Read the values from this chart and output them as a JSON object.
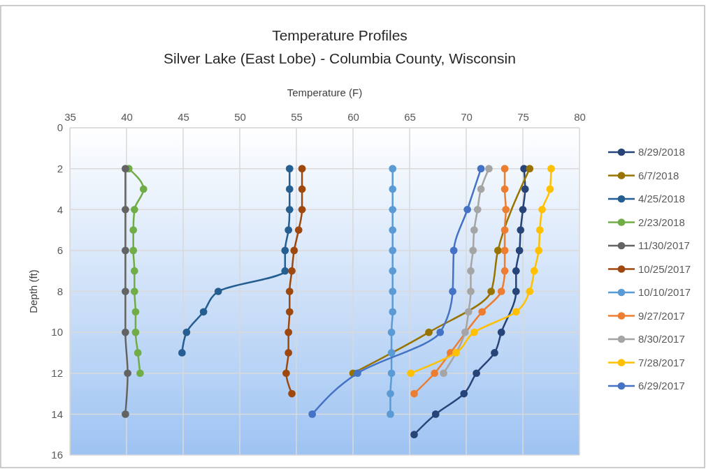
{
  "chart_data": {
    "type": "line",
    "title": "Temperature Profiles",
    "subtitle": "Silver Lake (East Lobe) - Columbia County, Wisconsin",
    "xlabel": "Temperature (F)",
    "ylabel": "Depth (ft)",
    "xlim": [
      35,
      80
    ],
    "xticks": [
      35,
      40,
      45,
      50,
      55,
      60,
      65,
      70,
      75,
      80
    ],
    "ylim": [
      16,
      0
    ],
    "yticks": [
      0,
      2,
      4,
      6,
      8,
      10,
      12,
      14,
      16
    ],
    "grid": true,
    "legend": "right",
    "marker": "circle",
    "line_style": "solid",
    "series": [
      {
        "name": "8/29/2018",
        "color": "#264478",
        "x": [
          75.1,
          75.2,
          75.0,
          74.8,
          74.7,
          74.4,
          74.4,
          74.3,
          73.1,
          72.5,
          70.9,
          69.8,
          67.3,
          65.4
        ],
        "values": [
          2,
          3,
          4,
          5,
          6,
          7,
          8,
          null,
          10,
          11,
          12,
          13,
          14,
          15
        ]
      },
      {
        "name": "6/7/2018",
        "color": "#997300",
        "x": [
          75.6,
          72.8,
          72.2,
          66.7,
          60.0
        ],
        "values": [
          2,
          6,
          8,
          10,
          12
        ]
      },
      {
        "name": "4/25/2018",
        "color": "#255e91",
        "x": [
          54.4,
          54.4,
          54.4,
          54.3,
          54.0,
          54.0,
          48.1,
          46.8,
          45.3,
          44.9
        ],
        "values": [
          2,
          3,
          4,
          5,
          6,
          7,
          8,
          9,
          10,
          11
        ]
      },
      {
        "name": "2/23/2018",
        "color": "#70ad47",
        "x": [
          40.2,
          41.5,
          40.7,
          40.6,
          40.6,
          40.7,
          40.7,
          40.8,
          40.8,
          41.0,
          41.2
        ],
        "values": [
          2,
          3,
          4,
          5,
          6,
          7,
          8,
          9,
          10,
          11,
          12
        ]
      },
      {
        "name": "11/30/2017",
        "color": "#636363",
        "x": [
          39.9,
          39.9,
          39.9,
          39.9,
          39.9,
          40.1,
          39.9
        ],
        "values": [
          2,
          4,
          6,
          8,
          10,
          12,
          14
        ]
      },
      {
        "name": "10/25/2017",
        "color": "#9e480e",
        "x": [
          55.5,
          55.5,
          55.5,
          55.2,
          54.8,
          54.6,
          54.4,
          54.4,
          54.3,
          54.3,
          54.1,
          54.6
        ],
        "values": [
          2,
          3,
          4,
          5,
          6,
          7,
          8,
          9,
          10,
          11,
          12,
          13
        ]
      },
      {
        "name": "10/10/2017",
        "color": "#5b9bd5",
        "x": [
          63.5,
          63.5,
          63.5,
          63.5,
          63.5,
          63.5,
          63.5,
          63.5,
          63.4,
          63.4,
          63.4,
          63.3,
          63.3
        ],
        "values": [
          2,
          3,
          4,
          5,
          6,
          7,
          8,
          9,
          10,
          11,
          12,
          13,
          14
        ]
      },
      {
        "name": "9/27/2017",
        "color": "#ed7d31",
        "x": [
          73.4,
          73.4,
          73.5,
          73.4,
          73.4,
          73.4,
          73.1,
          71.4,
          70.0,
          68.6,
          67.2,
          65.4
        ],
        "values": [
          2,
          3,
          4,
          5,
          6,
          7,
          8,
          9,
          null,
          11,
          12,
          13
        ]
      },
      {
        "name": "8/30/2017",
        "color": "#a5a5a5",
        "x": [
          72.0,
          71.3,
          71.0,
          70.7,
          70.6,
          70.4,
          70.4,
          70.2,
          69.9,
          null,
          68.0
        ],
        "values": [
          2,
          3,
          4,
          5,
          6,
          7,
          8,
          9,
          10,
          null,
          12
        ]
      },
      {
        "name": "7/28/2017",
        "color": "#ffc000",
        "x": [
          77.5,
          77.4,
          76.7,
          76.5,
          76.4,
          76.0,
          75.6,
          74.4,
          70.7,
          69.1,
          65.1
        ],
        "values": [
          2,
          3,
          4,
          5,
          6,
          7,
          8,
          9,
          10,
          11,
          12
        ]
      },
      {
        "name": "6/29/2017",
        "color": "#4472c4",
        "x": [
          71.3,
          70.1,
          68.9,
          68.8,
          67.7,
          60.4,
          56.4
        ],
        "values": [
          2,
          4,
          6,
          8,
          10,
          12,
          14
        ]
      }
    ]
  }
}
